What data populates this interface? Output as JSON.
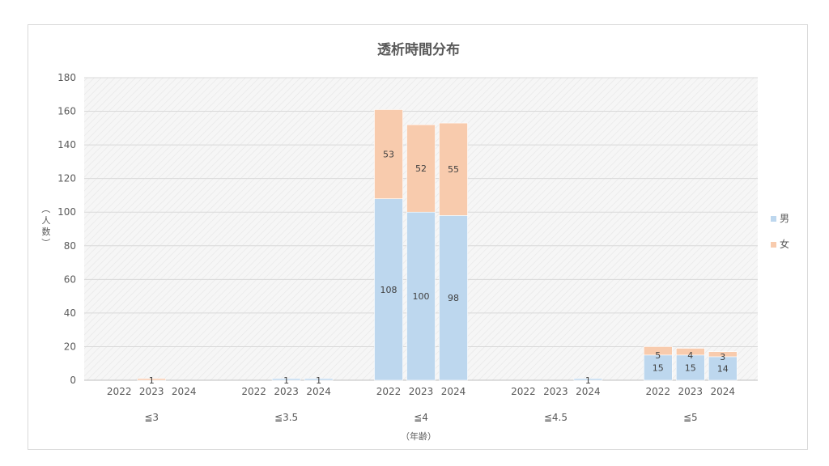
{
  "chart_data": {
    "type": "bar",
    "stacked": true,
    "title": "透析時間分布",
    "ylabel": "（人数）",
    "xlabel": "（年齢）",
    "ylim": [
      0,
      180
    ],
    "yticks": [
      0,
      20,
      40,
      60,
      80,
      100,
      120,
      140,
      160,
      180
    ],
    "groups": [
      "≦3",
      "≦3.5",
      "≦4",
      "≦4.5",
      "≦5"
    ],
    "years": [
      "2022",
      "2023",
      "2024"
    ],
    "series": [
      {
        "name": "男",
        "color": "#bdd7ee",
        "values": [
          [
            0,
            0,
            0
          ],
          [
            0,
            1,
            1
          ],
          [
            108,
            100,
            98
          ],
          [
            0,
            0,
            1
          ],
          [
            15,
            15,
            14
          ]
        ]
      },
      {
        "name": "女",
        "color": "#f8cbad",
        "values": [
          [
            0,
            1,
            0
          ],
          [
            0,
            0,
            0
          ],
          [
            53,
            52,
            55
          ],
          [
            0,
            0,
            0
          ],
          [
            5,
            4,
            3
          ]
        ]
      }
    ],
    "grid": true,
    "legend": "right"
  }
}
